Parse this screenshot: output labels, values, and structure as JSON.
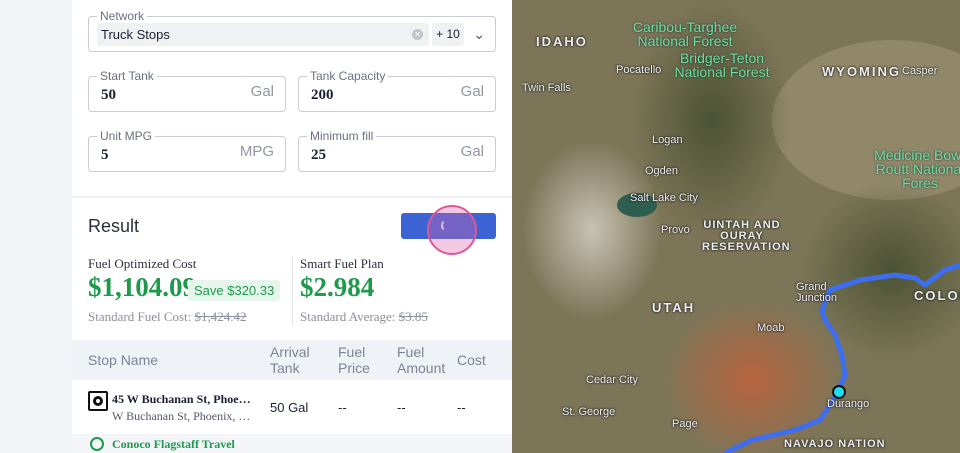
{
  "form": {
    "network": {
      "label": "Network",
      "chip": "Truck Stops",
      "more": "+ 10"
    },
    "start_tank": {
      "label": "Start Tank",
      "value": "50",
      "unit": "Gal"
    },
    "tank_capacity": {
      "label": "Tank Capacity",
      "value": "200",
      "unit": "Gal"
    },
    "unit_mpg": {
      "label": "Unit MPG",
      "value": "5",
      "unit": "MPG"
    },
    "minimum_fill": {
      "label": "Minimum fill",
      "value": "25",
      "unit": "Gal"
    }
  },
  "result": {
    "title": "Result",
    "optimized": {
      "label": "Fuel Optimized Cost",
      "value": "$1,104.09",
      "save": "Save $320.33",
      "standard_label": "Standard Fuel Cost:",
      "standard_value": "$1,424.42"
    },
    "smart": {
      "label": "Smart Fuel Plan",
      "value": "$2.984",
      "standard_label": "Standard Average:",
      "standard_value": "$3.85"
    }
  },
  "table": {
    "headers": [
      "Stop Name",
      "Arrival Tank",
      "Fuel Price",
      "Fuel Amount",
      "Cost"
    ],
    "rows": [
      {
        "name": "45 W Buchanan St, Phoe…",
        "address": "W Buchanan St, Phoenix, …",
        "arrival": "50 Gal",
        "price": "--",
        "amount": "--",
        "cost": "--"
      },
      {
        "name": "Conoco Flagstaff Travel"
      }
    ]
  },
  "map": {
    "labels": {
      "idaho": "IDAHO",
      "wyoming": "WYOMING",
      "utah": "UTAH",
      "colorado": "COLOR",
      "caribou": "Caribou-Targhee National Forest",
      "bridger": "Bridger-Teton National Forest",
      "medicine": "Medicine Bow-Routt National Fores",
      "pocatello": "Pocatello",
      "twin_falls": "Twin Falls",
      "casper": "Casper",
      "logan": "Logan",
      "ogden": "Ogden",
      "slc": "Salt Lake City",
      "provo": "Provo",
      "uintah": "UINTAH AND OURAY RESERVATION",
      "grand_junction": "Grand Junction",
      "moab": "Moab",
      "cedar_city": "Cedar City",
      "st_george": "St. George",
      "page": "Page",
      "durango": "Durango",
      "navajo": "NAVAJO NATION"
    },
    "route_color": "#3d6ef0",
    "marker_color": "#19e0f0"
  }
}
